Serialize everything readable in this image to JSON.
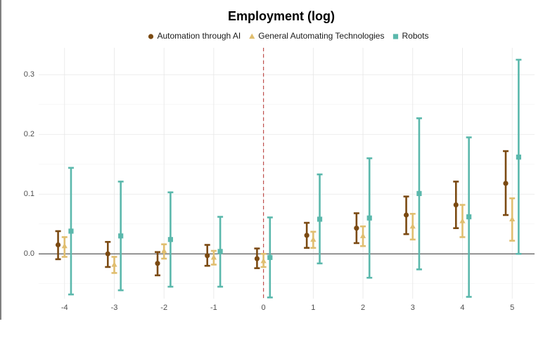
{
  "chart_data": {
    "type": "errorbar",
    "title": "Employment (log)",
    "x": [
      -4,
      -3,
      -2,
      -1,
      0,
      1,
      2,
      3,
      4,
      5
    ],
    "series": [
      {
        "name": "Automation through AI",
        "color": "#7b4a12",
        "marker": "circle",
        "values": [
          0.015,
          0.0,
          -0.016,
          -0.003,
          -0.008,
          0.031,
          0.043,
          0.065,
          0.082,
          0.118
        ],
        "lower": [
          -0.009,
          -0.022,
          -0.036,
          -0.02,
          -0.024,
          0.01,
          0.018,
          0.033,
          0.043,
          0.065
        ],
        "upper": [
          0.038,
          0.02,
          0.003,
          0.015,
          0.009,
          0.052,
          0.068,
          0.096,
          0.121,
          0.172
        ]
      },
      {
        "name": "General Automating Technologies",
        "color": "#e0be6f",
        "marker": "triangle",
        "values": [
          0.013,
          -0.018,
          0.005,
          -0.006,
          -0.012,
          0.024,
          0.03,
          0.046,
          0.055,
          0.058
        ],
        "lower": [
          -0.005,
          -0.032,
          -0.008,
          -0.018,
          -0.022,
          0.01,
          0.013,
          0.024,
          0.028,
          0.022
        ],
        "upper": [
          0.028,
          -0.005,
          0.016,
          0.005,
          0.0,
          0.037,
          0.046,
          0.067,
          0.082,
          0.093
        ]
      },
      {
        "name": "Robots",
        "color": "#5bb8ac",
        "marker": "square",
        "values": [
          0.038,
          0.03,
          0.024,
          0.004,
          -0.006,
          0.058,
          0.06,
          0.101,
          0.062,
          0.162
        ],
        "lower": [
          -0.068,
          -0.061,
          -0.055,
          -0.055,
          -0.073,
          -0.016,
          -0.04,
          -0.026,
          -0.072,
          0.0
        ],
        "upper": [
          0.144,
          0.121,
          0.103,
          0.062,
          0.061,
          0.133,
          0.16,
          0.227,
          0.195,
          0.325
        ]
      }
    ],
    "xlim": [
      -4.52,
      5.45
    ],
    "xticks": [
      -4,
      -3,
      -2,
      -1,
      0,
      1,
      2,
      3,
      4,
      5
    ],
    "ylim": [
      -0.075,
      0.345
    ],
    "yticks": [
      {
        "value": 0,
        "label": "0.0"
      },
      0.1,
      0.2,
      0.3
    ],
    "grid": true,
    "legend": "top",
    "vline": 0,
    "vline_color": "#c0504d",
    "hline": 0
  }
}
